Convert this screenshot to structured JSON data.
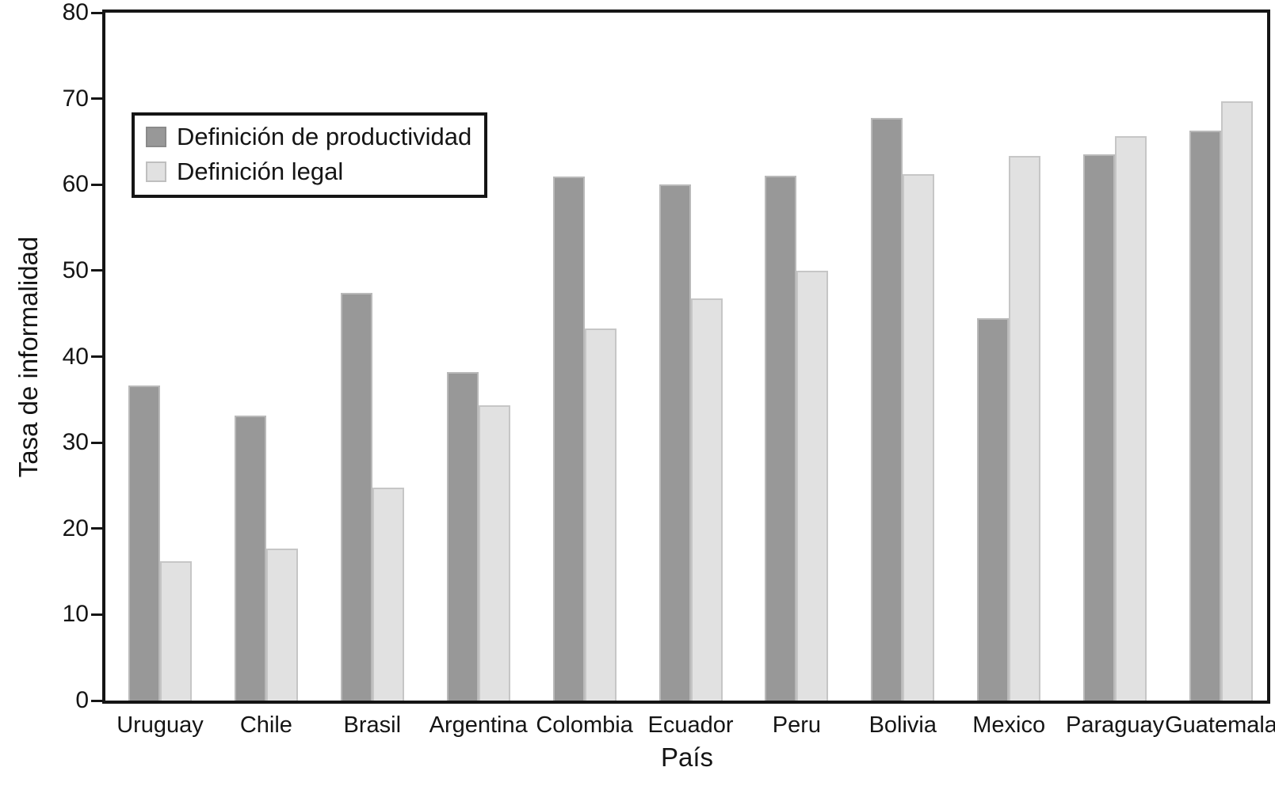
{
  "figure": {
    "background": "#ffffff",
    "frame_color": "#151515",
    "text_color": "#151515"
  },
  "chart_data": {
    "type": "bar",
    "title": "",
    "xlabel": "País",
    "ylabel": "Tasa de informalidad",
    "ylim": [
      0,
      80
    ],
    "ytick_step": 10,
    "ytick_labels": [
      "0",
      "10",
      "20",
      "30",
      "40",
      "50",
      "60",
      "70",
      "80"
    ],
    "grid": false,
    "legend_position": "upper-left-inside",
    "categories": [
      "Uruguay",
      "Chile",
      "Brasil",
      "Argentina",
      "Colombia",
      "Ecuador",
      "Peru",
      "Bolivia",
      "Mexico",
      "Paraguay",
      "Guatemala"
    ],
    "series": [
      {
        "name": "Definición de productividad",
        "color": "#989898",
        "border_color": "#b9b9b9",
        "values": [
          36.6,
          33.1,
          47.4,
          38.2,
          60.9,
          60.0,
          61.0,
          67.8,
          44.5,
          63.5,
          66.3
        ]
      },
      {
        "name": "Definición legal",
        "color": "#e1e1e1",
        "border_color": "#c6c6c6",
        "values": [
          16.2,
          17.7,
          24.8,
          34.3,
          43.3,
          46.8,
          50.0,
          61.2,
          63.3,
          65.6,
          69.7
        ]
      }
    ]
  }
}
